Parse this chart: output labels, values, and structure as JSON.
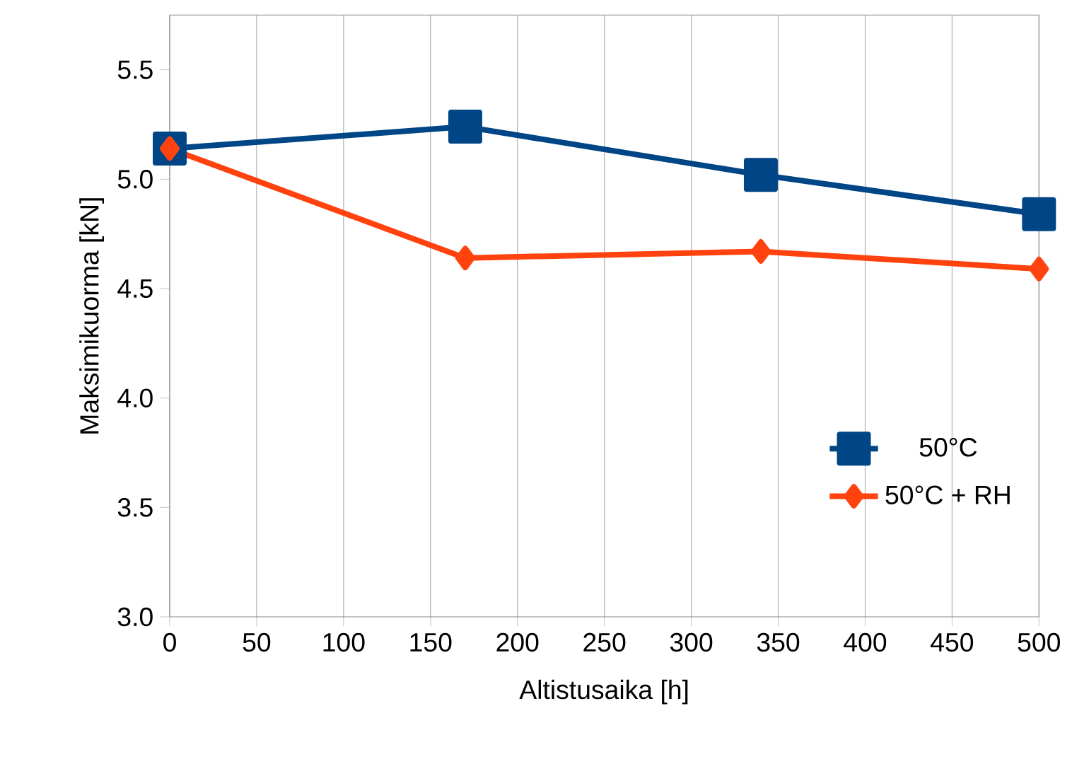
{
  "chart_data": {
    "type": "line",
    "xlabel": "Altistusaika [h]",
    "ylabel": "Maksimikuorma [kN]",
    "x": [
      0,
      170,
      340,
      500
    ],
    "series": [
      {
        "name": "50°C",
        "color": "#004586",
        "marker": "square",
        "values": [
          5.14,
          5.24,
          5.02,
          4.84
        ]
      },
      {
        "name": "50°C + RH",
        "color": "#ff420e",
        "marker": "diamond",
        "values": [
          5.14,
          4.64,
          4.67,
          4.59
        ]
      }
    ],
    "xlim": [
      0,
      500
    ],
    "xticks": [
      0,
      50,
      100,
      150,
      200,
      250,
      300,
      350,
      400,
      450,
      500
    ],
    "ylim": [
      3,
      5.75
    ],
    "yticks": [
      {
        "value": 3,
        "label": "3.0"
      },
      {
        "value": 3.5,
        "label": "3.5"
      },
      {
        "value": 4,
        "label": "4.0"
      },
      {
        "value": 4.5,
        "label": "4.5"
      },
      {
        "value": 5,
        "label": "5.0"
      },
      {
        "value": 5.5,
        "label": "5.5"
      }
    ],
    "grid": "x",
    "legend": "right",
    "line_style": "solid"
  }
}
